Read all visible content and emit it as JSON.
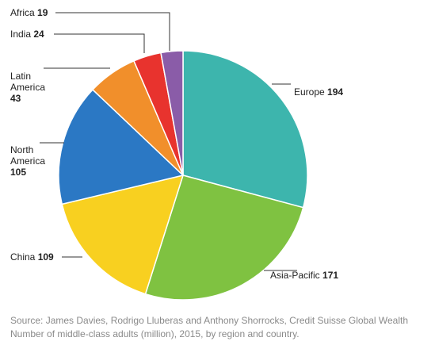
{
  "chart_data": {
    "type": "pie",
    "title": "",
    "start_angle_deg": 0,
    "direction": "clockwise",
    "slices": [
      {
        "label": "Europe",
        "value": 194,
        "color": "#3db5ad"
      },
      {
        "label": "Asia-Pacific",
        "value": 171,
        "color": "#7fc241"
      },
      {
        "label": "China",
        "value": 109,
        "color": "#f8d020"
      },
      {
        "label": "North America",
        "value": 105,
        "color": "#2b78c4"
      },
      {
        "label": "Latin America",
        "value": 43,
        "color": "#f18f2b"
      },
      {
        "label": "India",
        "value": 24,
        "color": "#e8332e"
      },
      {
        "label": "Africa",
        "value": 19,
        "color": "#8a5ca8"
      }
    ],
    "label_lines": [
      {
        "name": [
          "Europe"
        ],
        "value": "194"
      },
      {
        "name": [
          "Asia-Pacific"
        ],
        "value": "171"
      },
      {
        "name": [
          "China"
        ],
        "value": "109"
      },
      {
        "name": [
          "North",
          "America"
        ],
        "value": "105"
      },
      {
        "name": [
          "Latin",
          "America"
        ],
        "value": "43"
      },
      {
        "name": [
          "India"
        ],
        "value": "24"
      },
      {
        "name": [
          "Africa"
        ],
        "value": "19"
      }
    ]
  },
  "caption": {
    "source": "Source: James Davies, Rodrigo Lluberas and Anthony Shorrocks, Credit Suisse Global Wealth",
    "note": "Number of middle-class adults (million), 2015, by region and country."
  }
}
